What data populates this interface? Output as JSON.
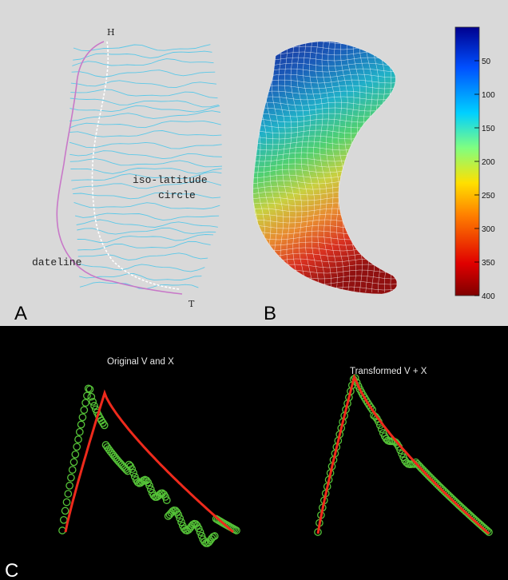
{
  "panel_a": {
    "letter": "A",
    "head_label": "H",
    "tail_label": "T",
    "iso_label_line1": "iso-latitude",
    "iso_label_line2": "circle",
    "dateline_label": "dateline"
  },
  "panel_b": {
    "letter": "B",
    "colorbar": {
      "ticks": [
        "50",
        "100",
        "150",
        "200",
        "250",
        "300",
        "350",
        "400"
      ],
      "min": 0,
      "max": 400,
      "colormap": "jet"
    }
  },
  "panel_c": {
    "letter": "C",
    "left_title": "Original V and X",
    "right_title": "Transformed V + X"
  },
  "colors": {
    "panel_top_bg": "#d9d9d9",
    "panel_bottom_bg": "#000000",
    "iso_curve": "#5bc8e8",
    "dateline": "#c878c8",
    "centerline": "#ffffff",
    "series_v": "#55c238",
    "series_x": "#ee2a1c"
  }
}
